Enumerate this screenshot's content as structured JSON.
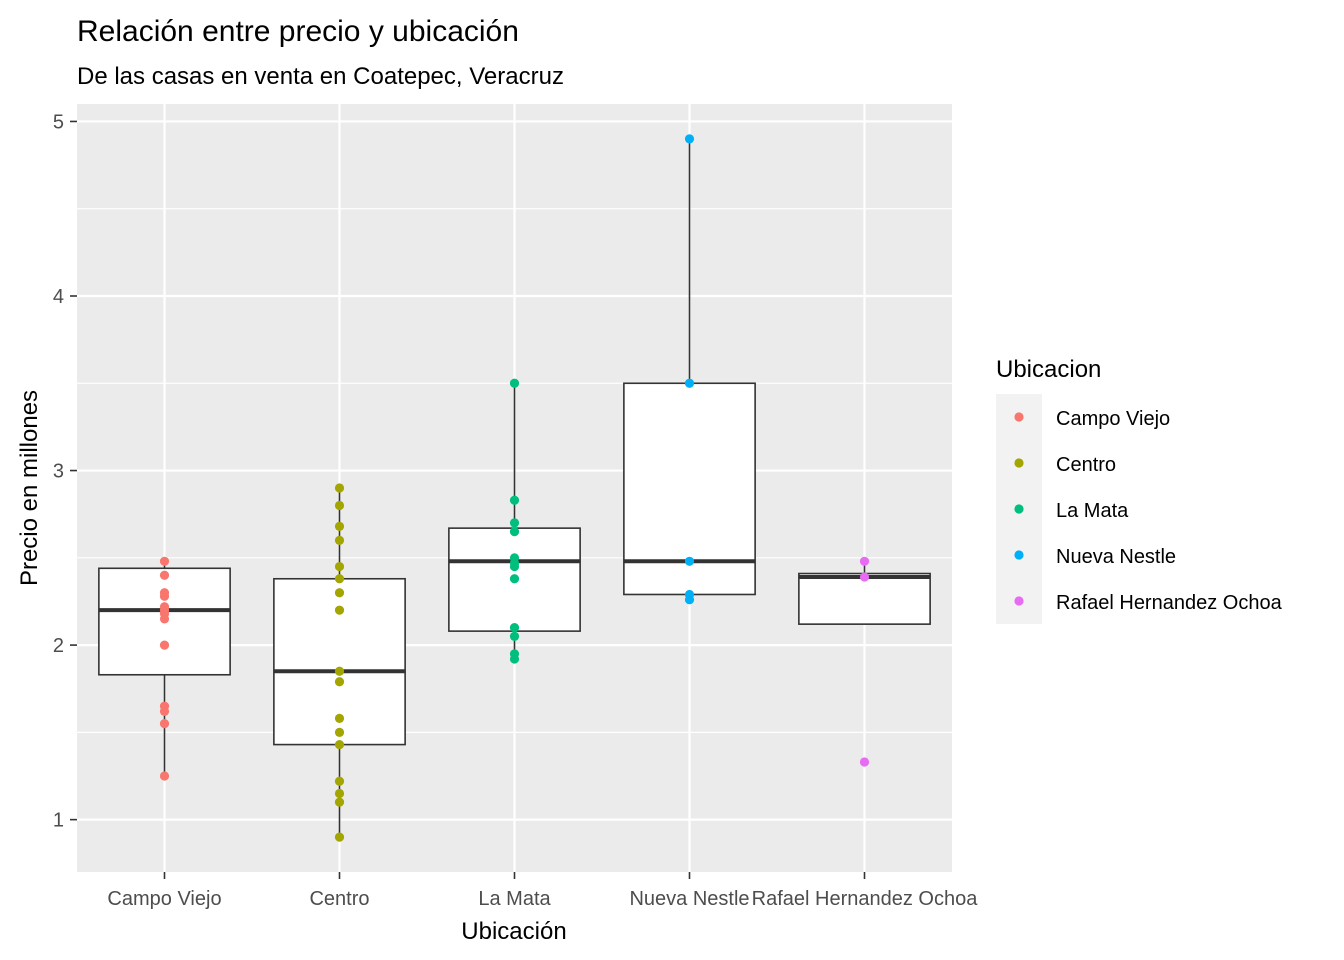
{
  "chart_data": {
    "type": "box",
    "title": "Relación entre precio y ubicación",
    "subtitle": "De las casas en venta en Coatepec, Veracruz",
    "xlabel": "Ubicación",
    "ylabel": "Precio en millones",
    "ylim": [
      0.7,
      5.1
    ],
    "yticks": [
      1,
      2,
      3,
      4,
      5
    ],
    "grid": true,
    "legend": {
      "title": "Ubicacion",
      "position": "right"
    },
    "categories": [
      "Campo Viejo",
      "Centro",
      "La Mata",
      "Nueva Nestle",
      "Rafael Hernandez Ochoa"
    ],
    "series": [
      {
        "name": "Campo Viejo",
        "color": "#F8766D",
        "box": {
          "lower_whisker": 1.25,
          "q1": 1.83,
          "median": 2.2,
          "q3": 2.44,
          "upper_whisker": 2.48
        },
        "points": [
          2.48,
          2.4,
          2.3,
          2.28,
          2.22,
          2.2,
          2.18,
          2.15,
          2.0,
          1.65,
          1.62,
          1.55,
          1.25
        ]
      },
      {
        "name": "Centro",
        "color": "#A3A500",
        "box": {
          "lower_whisker": 0.9,
          "q1": 1.43,
          "median": 1.85,
          "q3": 2.38,
          "upper_whisker": 2.9
        },
        "points": [
          2.9,
          2.8,
          2.68,
          2.6,
          2.45,
          2.38,
          2.3,
          2.2,
          1.85,
          1.79,
          1.58,
          1.5,
          1.43,
          1.22,
          1.15,
          1.1,
          0.9
        ]
      },
      {
        "name": "La Mata",
        "color": "#00BF7D",
        "box": {
          "lower_whisker": 1.92,
          "q1": 2.08,
          "median": 2.48,
          "q3": 2.67,
          "upper_whisker": 3.5
        },
        "points": [
          3.5,
          2.83,
          2.7,
          2.65,
          2.5,
          2.47,
          2.45,
          2.38,
          2.1,
          2.05,
          1.95,
          1.92
        ]
      },
      {
        "name": "Nueva Nestle",
        "color": "#00B0F6",
        "box": {
          "lower_whisker": 2.26,
          "q1": 2.29,
          "median": 2.48,
          "q3": 3.5,
          "upper_whisker": 4.9
        },
        "points": [
          4.9,
          3.5,
          2.48,
          2.29,
          2.26
        ]
      },
      {
        "name": "Rafael Hernandez Ochoa",
        "color": "#E76BF3",
        "box": {
          "lower_whisker": 2.12,
          "q1": 2.12,
          "median": 2.39,
          "q3": 2.41,
          "upper_whisker": 2.48
        },
        "points": [
          2.48,
          2.39,
          1.33
        ]
      }
    ]
  }
}
